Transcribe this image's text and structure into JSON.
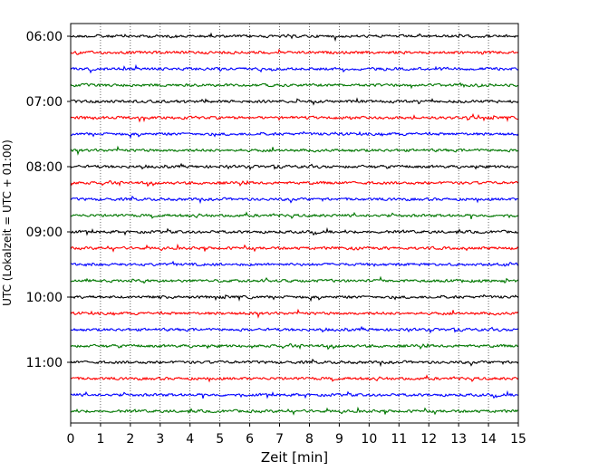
{
  "chart_data": {
    "type": "line",
    "title": "",
    "xlabel": "Zeit  [min]",
    "ylabel": "UTC (Lokalzeit = UTC + 01:00)",
    "xlim": [
      0,
      15
    ],
    "x_ticks": [
      0,
      1,
      2,
      3,
      4,
      5,
      6,
      7,
      8,
      9,
      10,
      11,
      12,
      13,
      14,
      15
    ],
    "y_ticks": [
      "06:00",
      "07:00",
      "08:00",
      "09:00",
      "10:00",
      "11:00"
    ],
    "y_tick_rows": [
      0,
      4,
      8,
      12,
      16,
      20
    ],
    "grid": "vertical-dotted",
    "trace_interval_min": 15,
    "first_trace": "06:00",
    "trace_count": 24,
    "trace_color_cycle": [
      "#000000",
      "#ff0000",
      "#0000ff",
      "#007700"
    ]
  }
}
